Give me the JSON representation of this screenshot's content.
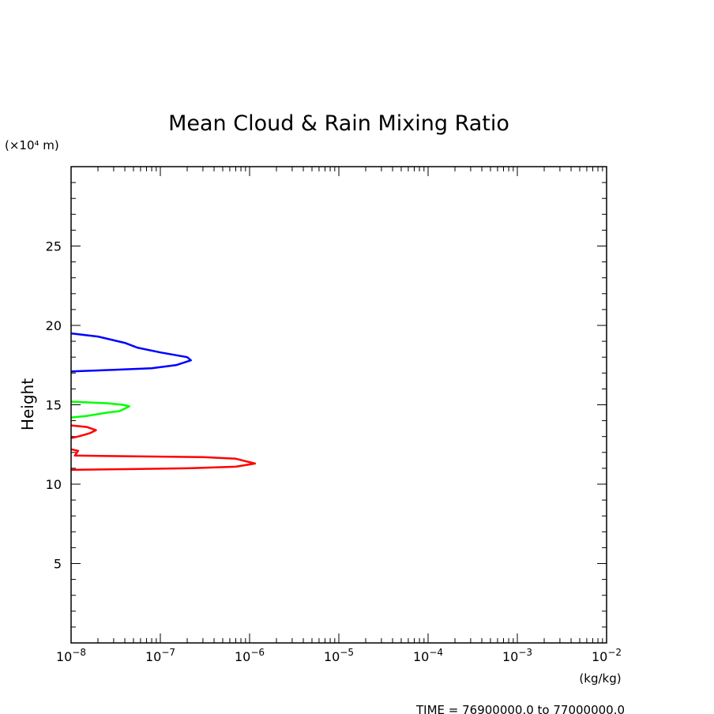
{
  "chart_data": {
    "type": "line",
    "title": "Mean Cloud & Rain Mixing Ratio",
    "ylabel": "Height",
    "y_unit": "(×10⁴ m)",
    "x_unit": "(kg/kg)",
    "footer": "TIME = 76900000.0 to 77000000.0",
    "x_scale": "log",
    "xlim": [
      1e-08,
      0.01
    ],
    "ylim": [
      0,
      30
    ],
    "x_ticks": [
      1e-08,
      1e-07,
      1e-06,
      1e-05,
      0.0001,
      0.001,
      0.01
    ],
    "x_tick_labels": [
      {
        "base": "10",
        "exp": "−8"
      },
      {
        "base": "10",
        "exp": "−7"
      },
      {
        "base": "10",
        "exp": "−6"
      },
      {
        "base": "10",
        "exp": "−5"
      },
      {
        "base": "10",
        "exp": "−4"
      },
      {
        "base": "10",
        "exp": "−3"
      },
      {
        "base": "10",
        "exp": "−2"
      }
    ],
    "y_ticks": [
      5,
      10,
      15,
      20,
      25
    ],
    "y_tick_labels": [
      "5",
      "10",
      "15",
      "20",
      "25"
    ],
    "series": [
      {
        "color": "#0000ff",
        "points": [
          [
            1e-08,
            19.5
          ],
          [
            2e-08,
            19.3
          ],
          [
            4e-08,
            18.9
          ],
          [
            5.5e-08,
            18.6
          ],
          [
            1e-07,
            18.3
          ],
          [
            2e-07,
            18.0
          ],
          [
            2.2e-07,
            17.8
          ],
          [
            1.5e-07,
            17.5
          ],
          [
            8e-08,
            17.3
          ],
          [
            3e-08,
            17.2
          ],
          [
            1e-08,
            17.1
          ]
        ]
      },
      {
        "color": "#00ff00",
        "points": [
          [
            1e-08,
            15.2
          ],
          [
            2.5e-08,
            15.1
          ],
          [
            3.8e-08,
            15.0
          ],
          [
            4.5e-08,
            14.9
          ],
          [
            3.5e-08,
            14.6
          ],
          [
            2.5e-08,
            14.5
          ],
          [
            1.5e-08,
            14.3
          ],
          [
            1e-08,
            14.2
          ]
        ]
      },
      {
        "color": "#ff0000",
        "points": [
          [
            1e-08,
            13.7
          ],
          [
            1.5e-08,
            13.6
          ],
          [
            1.9e-08,
            13.4
          ],
          [
            1.6e-08,
            13.2
          ],
          [
            1.2e-08,
            13.0
          ],
          [
            1e-08,
            12.9
          ]
        ]
      },
      {
        "color": "#ff0000",
        "points": [
          [
            1e-08,
            12.2
          ],
          [
            1.2e-08,
            12.1
          ],
          [
            1.1e-08,
            11.8
          ],
          [
            3e-07,
            11.7
          ],
          [
            7e-07,
            11.6
          ],
          [
            1.15e-06,
            11.3
          ],
          [
            7e-07,
            11.1
          ],
          [
            2e-07,
            11.0
          ],
          [
            5e-08,
            10.95
          ],
          [
            1e-08,
            10.9
          ]
        ]
      }
    ]
  }
}
